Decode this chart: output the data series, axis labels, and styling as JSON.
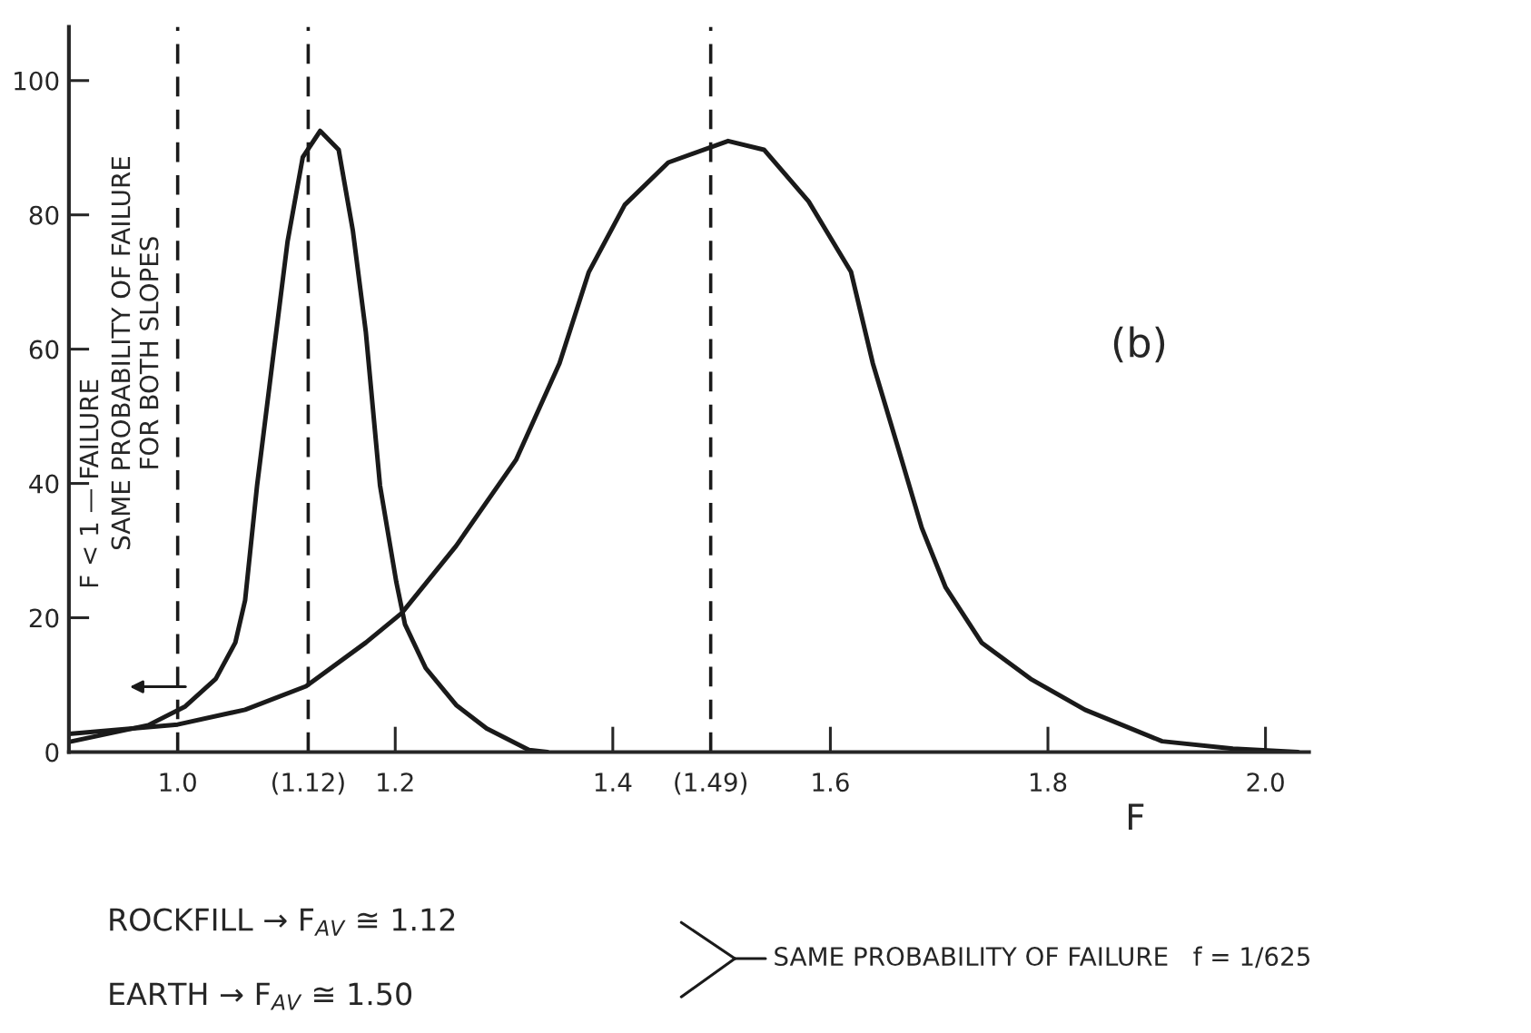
{
  "chart_data": {
    "type": "line",
    "xlabel": "F",
    "xlim": [
      0.9,
      2.04
    ],
    "ylim": [
      0,
      108
    ],
    "xticks": [
      {
        "value": 1.0,
        "label": "1.0"
      },
      {
        "value": 1.12,
        "label": "(1.12)"
      },
      1.2,
      1.4,
      {
        "value": 1.49,
        "label": "(1.49)"
      },
      1.6,
      1.8,
      {
        "value": 2.0,
        "label": "2.0"
      }
    ],
    "yticks": [
      0,
      20,
      40,
      60,
      80,
      100
    ],
    "series": [
      {
        "color": "#1a1a1a",
        "x": [
          0.9,
          0.973,
          1.007,
          1.035,
          1.053,
          1.062,
          1.073,
          1.087,
          1.101,
          1.115,
          1.131,
          1.148,
          1.161,
          1.173,
          1.186,
          1.201,
          1.209,
          1.228,
          1.256,
          1.284,
          1.323,
          1.34
        ],
        "values": [
          1.5,
          4.0,
          6.8,
          10.9,
          16.3,
          22.6,
          39.7,
          57.9,
          76,
          88.6,
          92.5,
          89.7,
          77.7,
          62.5,
          39.7,
          25.3,
          19,
          12.5,
          7,
          3.5,
          0.3,
          0
        ]
      },
      {
        "color": "#1a1a1a",
        "x": [
          0.9,
          1.0,
          1.062,
          1.118,
          1.173,
          1.206,
          1.256,
          1.311,
          1.351,
          1.378,
          1.411,
          1.451,
          1.506,
          1.539,
          1.58,
          1.619,
          1.639,
          1.661,
          1.684,
          1.706,
          1.739,
          1.784,
          1.834,
          1.905,
          1.97,
          2.03
        ],
        "values": [
          2.7,
          4.1,
          6.3,
          9.8,
          16.3,
          20.7,
          30.7,
          43.5,
          57.9,
          71.5,
          81.5,
          87.8,
          91,
          89.7,
          82,
          71.5,
          57.9,
          46,
          33.4,
          24.5,
          16.3,
          10.9,
          6.3,
          1.6,
          0.5,
          0
        ]
      }
    ],
    "ref_lines": [
      {
        "axis": "x",
        "value": 1.0,
        "color": "#1a1a1a",
        "line_style": "dashed"
      },
      {
        "axis": "x",
        "value": 1.12,
        "color": "#1a1a1a",
        "line_style": "dashed"
      },
      {
        "axis": "x",
        "value": 1.49,
        "color": "#1a1a1a",
        "line_style": "dashed"
      }
    ],
    "annotations": [
      "(b)",
      "F < 1 — FAILURE",
      "SAME PROBABILITY OF FAILURE\nFOR BOTH SLOPES",
      "ROCKFILL → F$_{AV}$ ≅ 1.12",
      "EARTH → F$_{AV}$ ≅ 1.50",
      "SAME PROBABILITY OF FAILURE   f = 1/625"
    ]
  }
}
